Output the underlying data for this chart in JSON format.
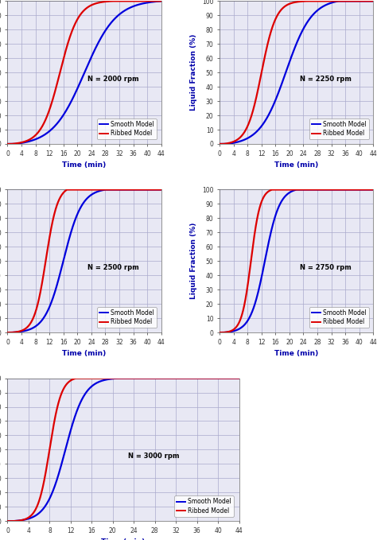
{
  "panels": [
    {
      "title": "N = 2000 rpm",
      "smooth": {
        "t_start": 2,
        "t_mid": 22,
        "t_end": 44,
        "k": 0.22
      },
      "ribbed": {
        "t_start": 1,
        "t_mid": 15,
        "t_end": 30,
        "k": 0.38
      }
    },
    {
      "title": "N = 2250 rpm",
      "smooth": {
        "t_start": 2,
        "t_mid": 19,
        "t_end": 34,
        "k": 0.27
      },
      "ribbed": {
        "t_start": 1,
        "t_mid": 12,
        "t_end": 25,
        "k": 0.48
      }
    },
    {
      "title": "N = 2500 rpm",
      "smooth": {
        "t_start": 1,
        "t_mid": 16,
        "t_end": 28,
        "k": 0.38
      },
      "ribbed": {
        "t_start": 1,
        "t_mid": 11,
        "t_end": 17,
        "k": 0.6
      }
    },
    {
      "title": "N = 2750 rpm",
      "smooth": {
        "t_start": 1,
        "t_mid": 13,
        "t_end": 22,
        "k": 0.48
      },
      "ribbed": {
        "t_start": 1,
        "t_mid": 9,
        "t_end": 15,
        "k": 0.75
      }
    },
    {
      "title": "N = 3000 rpm",
      "smooth": {
        "t_start": 1,
        "t_mid": 11,
        "t_end": 21,
        "k": 0.55
      },
      "ribbed": {
        "t_start": 1,
        "t_mid": 8,
        "t_end": 13,
        "k": 0.9
      }
    }
  ],
  "smooth_color": "#0000dd",
  "ribbed_color": "#dd0000",
  "line_width": 1.6,
  "xlabel": "Time (min)",
  "ylabel": "Liquid Fraction (%)",
  "xlim": [
    0,
    44
  ],
  "ylim": [
    0,
    100
  ],
  "xticks": [
    0,
    4,
    8,
    12,
    16,
    20,
    24,
    28,
    32,
    36,
    40,
    44
  ],
  "yticks": [
    0,
    10,
    20,
    30,
    40,
    50,
    60,
    70,
    80,
    90,
    100
  ],
  "grid_color": "#aaaacc",
  "bg_color": "#e8e8f4",
  "axis_label_color": "#0000aa",
  "tick_label_color": "#333333",
  "legend_smooth": "Smooth Model",
  "legend_ribbed": "Ribbed Model",
  "title_fontsize": 6.0,
  "label_fontsize": 6.5,
  "tick_fontsize": 5.5,
  "legend_fontsize": 5.5
}
